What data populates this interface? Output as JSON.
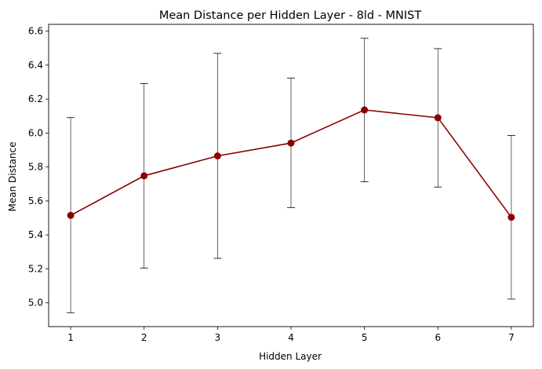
{
  "chart_data": {
    "type": "line",
    "title": "Mean Distance per Hidden Layer - 8ld - MNIST",
    "xlabel": "Hidden Layer",
    "ylabel": "Mean Distance",
    "x": [
      1,
      2,
      3,
      4,
      5,
      6,
      7
    ],
    "xticks": [
      "1",
      "2",
      "3",
      "4",
      "5",
      "6",
      "7"
    ],
    "yticks": [
      "5.0",
      "5.2",
      "5.4",
      "5.6",
      "5.8",
      "6.0",
      "6.2",
      "6.4",
      "6.6"
    ],
    "xlim": [
      0.7,
      7.3
    ],
    "ylim": [
      4.86,
      6.64
    ],
    "grid": false,
    "series": [
      {
        "values": [
          5.515,
          5.748,
          5.865,
          5.941,
          6.136,
          6.09,
          5.504
        ],
        "err_low": [
          4.942,
          5.205,
          5.262,
          5.561,
          5.713,
          5.682,
          5.022
        ],
        "err_high": [
          6.091,
          6.291,
          6.469,
          6.323,
          6.558,
          6.497,
          5.986
        ],
        "color": "#8b0000",
        "errcolor": "#000000"
      }
    ]
  }
}
